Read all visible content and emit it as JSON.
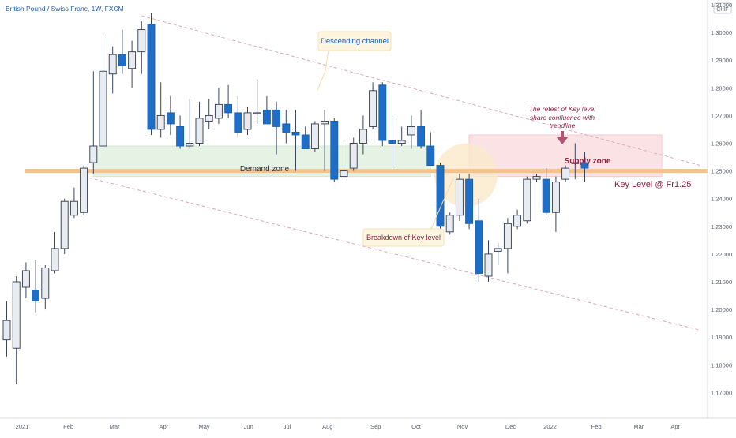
{
  "header": {
    "title": "British Pound / Swiss Franc, 1W, FXCM"
  },
  "currency_badge": "CHF",
  "colors": {
    "up_candle_fill": "#e8ecf0",
    "down_candle_fill": "#1e6ec8",
    "wick": "#3a4660",
    "key_level": "#f5c389",
    "demand_zone": "#e6f2e3",
    "supply_zone": "#fbe3e5",
    "channel": "#d9a7b7",
    "title_text": "#1f5fb0",
    "annotation_text": "#8a2040",
    "breakdown_circle": "#fbe9cb"
  },
  "annotations": {
    "descending_channel": "Descending channel",
    "demand_zone": "Demand zone",
    "supply_zone": "Supply zone",
    "breakdown": "Breakdown of Key level",
    "key_level": "Key Level @ Fr1.25",
    "retest_line1": "The retest of Key level",
    "retest_line2": "share confluence with",
    "retest_line3": "trendline"
  },
  "chart_data": {
    "type": "candlestick",
    "title": "British Pound / Swiss Franc, 1W, FXCM",
    "y_axis_unit": "CHF",
    "ylim": [
      1.165,
      1.312
    ],
    "y_ticks": [
      "1.17000",
      "1.18000",
      "1.19000",
      "1.20000",
      "1.21000",
      "1.22000",
      "1.23000",
      "1.24000",
      "1.25000",
      "1.26000",
      "1.27000",
      "1.28000",
      "1.29000",
      "1.30000",
      "1.31000"
    ],
    "y_tick_values": [
      1.17,
      1.18,
      1.19,
      1.2,
      1.21,
      1.22,
      1.23,
      1.24,
      1.25,
      1.26,
      1.27,
      1.28,
      1.29,
      1.3,
      1.31
    ],
    "x_tick_labels": [
      "2021",
      "Feb",
      "Mar",
      "Apr",
      "May",
      "Jun",
      "Jul",
      "Aug",
      "Sep",
      "Oct",
      "Nov",
      "Dec",
      "2022",
      "Feb",
      "Mar",
      "Apr"
    ],
    "x_tick_index": [
      1.6,
      6.4,
      11.2,
      16.3,
      20.5,
      25.1,
      29.1,
      33.3,
      38.3,
      42.5,
      47.3,
      52.3,
      56.4,
      61.2,
      65.6,
      69.4
    ],
    "candles": [
      {
        "date": "2020-12-28",
        "open": 1.189,
        "high": 1.203,
        "low": 1.183,
        "close": 1.196
      },
      {
        "date": "2021-01-04",
        "open": 1.186,
        "high": 1.212,
        "low": 1.173,
        "close": 1.21
      },
      {
        "date": "2021-01-11",
        "open": 1.208,
        "high": 1.217,
        "low": 1.204,
        "close": 1.214
      },
      {
        "date": "2021-01-18",
        "open": 1.207,
        "high": 1.218,
        "low": 1.199,
        "close": 1.203
      },
      {
        "date": "2021-01-25",
        "open": 1.204,
        "high": 1.216,
        "low": 1.2,
        "close": 1.215
      },
      {
        "date": "2021-02-01",
        "open": 1.214,
        "high": 1.228,
        "low": 1.213,
        "close": 1.222
      },
      {
        "date": "2021-02-08",
        "open": 1.222,
        "high": 1.24,
        "low": 1.22,
        "close": 1.239
      },
      {
        "date": "2021-02-15",
        "open": 1.234,
        "high": 1.244,
        "low": 1.233,
        "close": 1.239
      },
      {
        "date": "2021-02-22",
        "open": 1.235,
        "high": 1.252,
        "low": 1.234,
        "close": 1.251
      },
      {
        "date": "2021-03-01",
        "open": 1.253,
        "high": 1.286,
        "low": 1.249,
        "close": 1.259
      },
      {
        "date": "2021-03-08",
        "open": 1.259,
        "high": 1.299,
        "low": 1.258,
        "close": 1.286
      },
      {
        "date": "2021-03-15",
        "open": 1.285,
        "high": 1.295,
        "low": 1.278,
        "close": 1.292
      },
      {
        "date": "2021-03-22",
        "open": 1.292,
        "high": 1.301,
        "low": 1.285,
        "close": 1.288
      },
      {
        "date": "2021-03-29",
        "open": 1.287,
        "high": 1.297,
        "low": 1.28,
        "close": 1.293
      },
      {
        "date": "2021-04-05",
        "open": 1.293,
        "high": 1.304,
        "low": 1.285,
        "close": 1.301
      },
      {
        "date": "2021-04-12",
        "open": 1.303,
        "high": 1.307,
        "low": 1.263,
        "close": 1.265
      },
      {
        "date": "2021-04-19",
        "open": 1.265,
        "high": 1.282,
        "low": 1.262,
        "close": 1.27
      },
      {
        "date": "2021-04-26",
        "open": 1.271,
        "high": 1.277,
        "low": 1.263,
        "close": 1.267
      },
      {
        "date": "2021-05-03",
        "open": 1.266,
        "high": 1.27,
        "low": 1.258,
        "close": 1.259
      },
      {
        "date": "2021-05-10",
        "open": 1.259,
        "high": 1.276,
        "low": 1.258,
        "close": 1.26
      },
      {
        "date": "2021-05-17",
        "open": 1.26,
        "high": 1.275,
        "low": 1.259,
        "close": 1.269
      },
      {
        "date": "2021-05-24",
        "open": 1.268,
        "high": 1.276,
        "low": 1.265,
        "close": 1.27
      },
      {
        "date": "2021-05-31",
        "open": 1.269,
        "high": 1.28,
        "low": 1.267,
        "close": 1.274
      },
      {
        "date": "2021-06-07",
        "open": 1.274,
        "high": 1.281,
        "low": 1.269,
        "close": 1.271
      },
      {
        "date": "2021-06-14",
        "open": 1.271,
        "high": 1.277,
        "low": 1.262,
        "close": 1.264
      },
      {
        "date": "2021-06-21",
        "open": 1.265,
        "high": 1.273,
        "low": 1.263,
        "close": 1.271
      },
      {
        "date": "2021-06-28",
        "open": 1.271,
        "high": 1.283,
        "low": 1.267,
        "close": 1.271
      },
      {
        "date": "2021-07-05",
        "open": 1.272,
        "high": 1.277,
        "low": 1.268,
        "close": 1.267
      },
      {
        "date": "2021-07-12",
        "open": 1.272,
        "high": 1.275,
        "low": 1.256,
        "close": 1.266
      },
      {
        "date": "2021-07-19",
        "open": 1.267,
        "high": 1.272,
        "low": 1.26,
        "close": 1.264
      },
      {
        "date": "2021-07-26",
        "open": 1.264,
        "high": 1.272,
        "low": 1.25,
        "close": 1.263
      },
      {
        "date": "2021-08-02",
        "open": 1.263,
        "high": 1.266,
        "low": 1.258,
        "close": 1.258
      },
      {
        "date": "2021-08-09",
        "open": 1.258,
        "high": 1.268,
        "low": 1.257,
        "close": 1.267
      },
      {
        "date": "2021-08-16",
        "open": 1.267,
        "high": 1.272,
        "low": 1.25,
        "close": 1.268
      },
      {
        "date": "2021-08-23",
        "open": 1.268,
        "high": 1.269,
        "low": 1.246,
        "close": 1.247
      },
      {
        "date": "2021-08-30",
        "open": 1.248,
        "high": 1.26,
        "low": 1.246,
        "close": 1.25
      },
      {
        "date": "2021-09-06",
        "open": 1.251,
        "high": 1.262,
        "low": 1.25,
        "close": 1.26
      },
      {
        "date": "2021-09-13",
        "open": 1.26,
        "high": 1.27,
        "low": 1.256,
        "close": 1.265
      },
      {
        "date": "2021-09-20",
        "open": 1.266,
        "high": 1.282,
        "low": 1.265,
        "close": 1.279
      },
      {
        "date": "2021-09-27",
        "open": 1.281,
        "high": 1.282,
        "low": 1.259,
        "close": 1.261
      },
      {
        "date": "2021-10-04",
        "open": 1.261,
        "high": 1.27,
        "low": 1.251,
        "close": 1.26
      },
      {
        "date": "2021-10-11",
        "open": 1.26,
        "high": 1.266,
        "low": 1.259,
        "close": 1.261
      },
      {
        "date": "2021-10-18",
        "open": 1.263,
        "high": 1.27,
        "low": 1.258,
        "close": 1.266
      },
      {
        "date": "2021-10-25",
        "open": 1.266,
        "high": 1.272,
        "low": 1.258,
        "close": 1.259
      },
      {
        "date": "2021-11-01",
        "open": 1.259,
        "high": 1.264,
        "low": 1.252,
        "close": 1.252
      },
      {
        "date": "2021-11-08",
        "open": 1.252,
        "high": 1.253,
        "low": 1.227,
        "close": 1.23
      },
      {
        "date": "2021-11-15",
        "open": 1.228,
        "high": 1.235,
        "low": 1.227,
        "close": 1.234
      },
      {
        "date": "2021-11-22",
        "open": 1.234,
        "high": 1.249,
        "low": 1.232,
        "close": 1.247
      },
      {
        "date": "2021-11-29",
        "open": 1.247,
        "high": 1.249,
        "low": 1.229,
        "close": 1.231
      },
      {
        "date": "2021-12-06",
        "open": 1.232,
        "high": 1.24,
        "low": 1.21,
        "close": 1.213
      },
      {
        "date": "2021-12-13",
        "open": 1.212,
        "high": 1.225,
        "low": 1.21,
        "close": 1.22
      },
      {
        "date": "2021-12-20",
        "open": 1.221,
        "high": 1.224,
        "low": 1.216,
        "close": 1.222
      },
      {
        "date": "2021-12-27",
        "open": 1.222,
        "high": 1.233,
        "low": 1.213,
        "close": 1.231
      },
      {
        "date": "2022-01-03",
        "open": 1.23,
        "high": 1.236,
        "low": 1.229,
        "close": 1.234
      },
      {
        "date": "2022-01-10",
        "open": 1.232,
        "high": 1.248,
        "low": 1.231,
        "close": 1.247
      },
      {
        "date": "2022-01-17",
        "open": 1.247,
        "high": 1.249,
        "low": 1.246,
        "close": 1.248
      },
      {
        "date": "2022-01-24",
        "open": 1.247,
        "high": 1.251,
        "low": 1.234,
        "close": 1.235
      },
      {
        "date": "2022-01-31",
        "open": 1.235,
        "high": 1.248,
        "low": 1.228,
        "close": 1.246
      },
      {
        "date": "2022-02-07",
        "open": 1.247,
        "high": 1.252,
        "low": 1.246,
        "close": 1.251
      },
      {
        "date": "2022-02-14",
        "open": 1.253,
        "high": 1.26,
        "low": 1.247,
        "close": 1.253
      },
      {
        "date": "2022-02-21",
        "open": 1.253,
        "high": 1.257,
        "low": 1.246,
        "close": 1.251
      }
    ],
    "key_level": 1.25,
    "demand_zone": {
      "from_index": 9,
      "to_index": 44,
      "low": 1.248,
      "high": 1.259
    },
    "supply_zone": {
      "from_index": 48,
      "to_index": 68,
      "low": 1.248,
      "high": 1.263
    },
    "channel_upper": {
      "p1": [
        14.0,
        1.306
      ],
      "p2": [
        72.0,
        1.252
      ]
    },
    "channel_lower": {
      "p1": [
        8.0,
        1.248
      ],
      "p2": [
        72.0,
        1.1925
      ]
    },
    "grid": false,
    "legend": "none"
  }
}
